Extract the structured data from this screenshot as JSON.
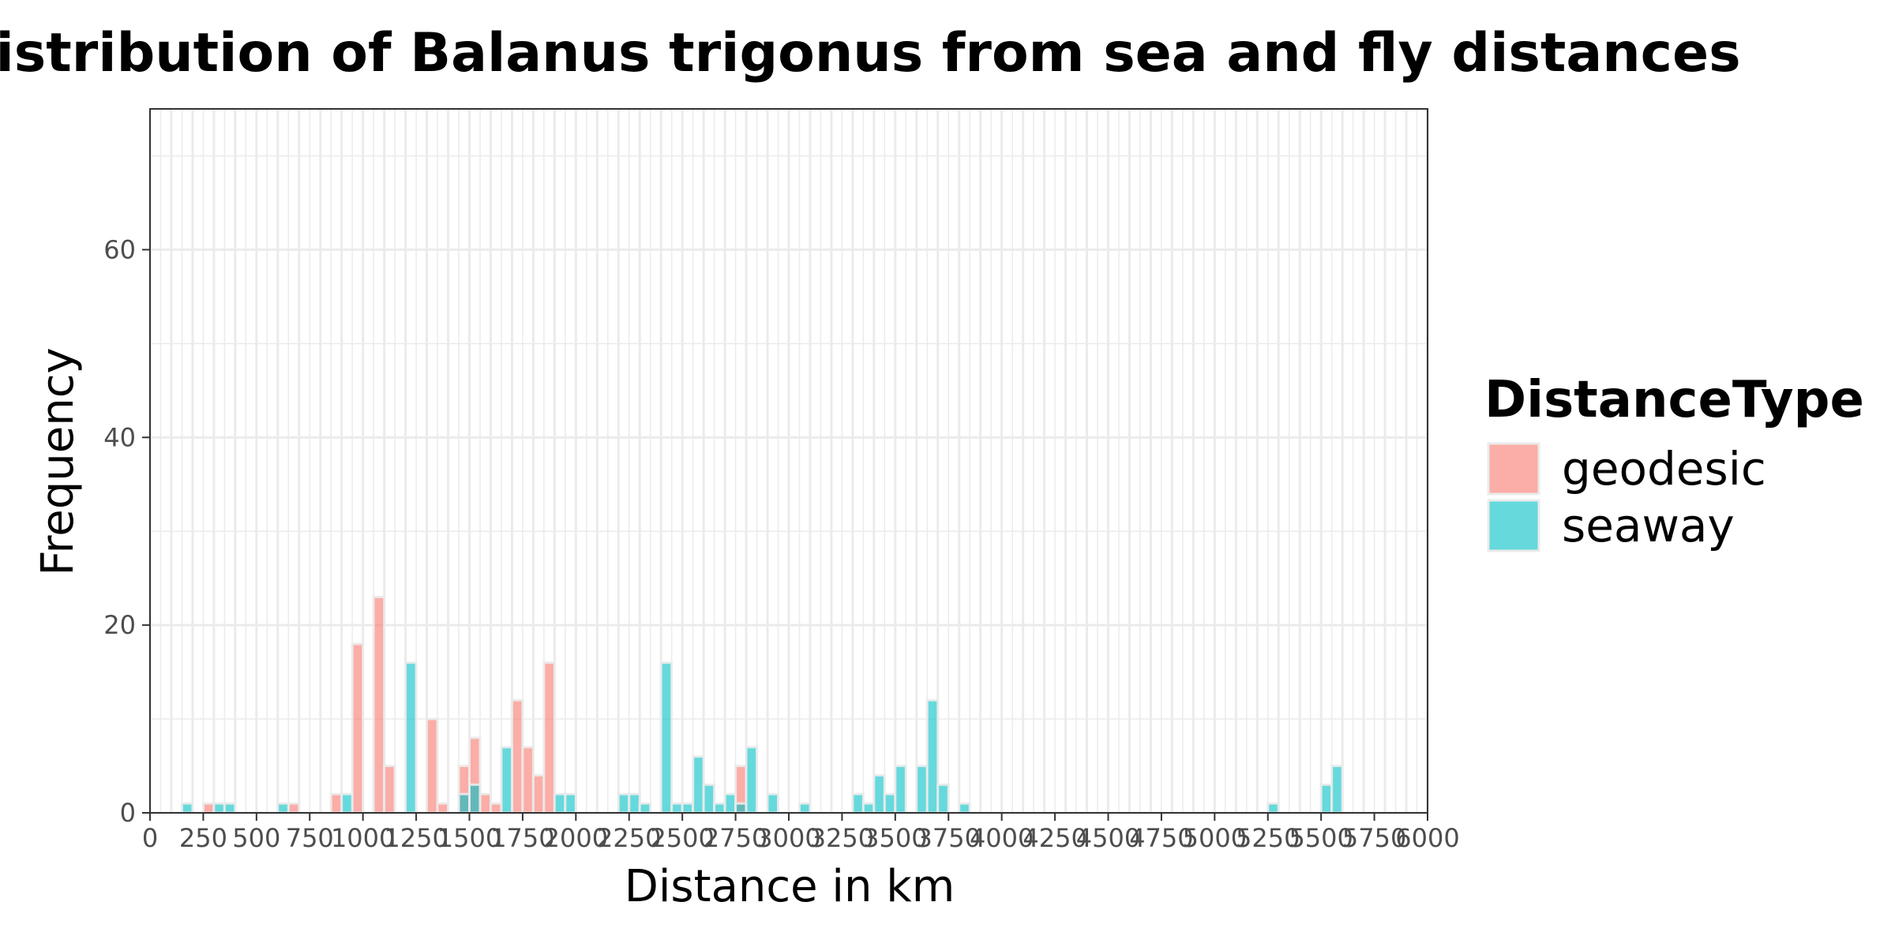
{
  "chart_data": {
    "type": "bar",
    "title": "Distribution of Balanus trigonus from sea and fly distances",
    "xlabel": "Distance in km",
    "ylabel": "Frequency",
    "xlim": [
      0,
      6000
    ],
    "ylim": [
      0,
      75
    ],
    "bin_width": 50,
    "grid": true,
    "x_ticks": [
      0,
      250,
      500,
      750,
      1000,
      1250,
      1500,
      1750,
      2000,
      2250,
      2500,
      2750,
      3000,
      3250,
      3500,
      3750,
      4000,
      4250,
      4500,
      4750,
      5000,
      5250,
      5500,
      5750,
      6000
    ],
    "x_tick_labels": [
      "0",
      "250",
      "500",
      "750",
      "1000",
      "1250",
      "1500",
      "1750",
      "2000",
      "2250",
      "2500",
      "2750",
      "3000",
      "3250",
      "3500",
      "3750",
      "4000",
      "4250",
      "4500",
      "4750",
      "5000",
      "5250",
      "5500",
      "5750",
      "6000"
    ],
    "y_ticks": [
      0,
      20,
      40,
      60
    ],
    "y_tick_labels": [
      "0",
      "20",
      "40",
      "60"
    ],
    "legend": {
      "title": "DistanceType",
      "position": "right"
    },
    "series": [
      {
        "name": "geodesic",
        "color": "#f8766d",
        "x": [
          250,
          650,
          850,
          950,
          1050,
          1100,
          1300,
          1350,
          1450,
          1500,
          1550,
          1600,
          1700,
          1750,
          1800,
          1850,
          2750
        ],
        "values": [
          1,
          1,
          2,
          18,
          23,
          5,
          10,
          1,
          5,
          8,
          2,
          1,
          12,
          7,
          4,
          16,
          5
        ]
      },
      {
        "name": "seaway",
        "color": "#00bfc4",
        "x": [
          150,
          300,
          350,
          600,
          900,
          1200,
          1450,
          1500,
          1650,
          1900,
          1950,
          2200,
          2250,
          2300,
          2400,
          2450,
          2500,
          2550,
          2600,
          2650,
          2700,
          2750,
          2800,
          2900,
          3050,
          3300,
          3350,
          3400,
          3450,
          3500,
          3600,
          3650,
          3700,
          3800,
          5250,
          5500,
          5550
        ],
        "values": [
          1,
          1,
          1,
          1,
          2,
          16,
          2,
          3,
          7,
          2,
          2,
          2,
          2,
          1,
          16,
          1,
          1,
          6,
          3,
          1,
          2,
          1,
          7,
          2,
          1,
          2,
          1,
          4,
          2,
          5,
          5,
          12,
          3,
          1,
          1,
          3,
          5
        ]
      }
    ]
  }
}
